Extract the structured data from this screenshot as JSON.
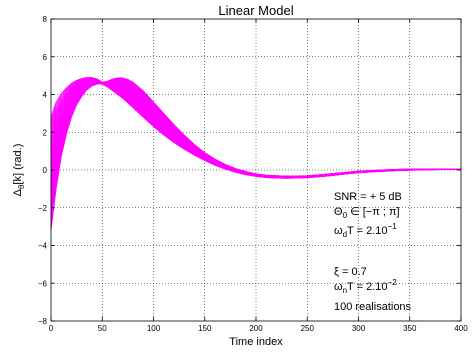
{
  "chart_data": {
    "type": "line",
    "title": "Linear Model",
    "xlabel": "Time index",
    "ylabel": {
      "base": "Δ",
      "sub": "θ",
      "rest": "[k] (rad.)"
    },
    "xlim": [
      0,
      400
    ],
    "ylim": [
      -8,
      8
    ],
    "xticks": [
      0,
      50,
      100,
      150,
      200,
      250,
      300,
      350,
      400
    ],
    "yticks": [
      -8,
      -6,
      -4,
      -2,
      0,
      2,
      4,
      6,
      8
    ],
    "grid": true,
    "line_color": "#ff00ff",
    "num_realisations_drawn": 40,
    "envelope": {
      "upper": [
        [
          0,
          2.8
        ],
        [
          5,
          3.6
        ],
        [
          10,
          4.05
        ],
        [
          15,
          4.35
        ],
        [
          20,
          4.6
        ],
        [
          25,
          4.75
        ],
        [
          30,
          4.85
        ],
        [
          35,
          4.9
        ],
        [
          40,
          4.9
        ],
        [
          45,
          4.82
        ],
        [
          50,
          4.65
        ],
        [
          55,
          4.7
        ],
        [
          60,
          4.82
        ],
        [
          65,
          4.88
        ],
        [
          70,
          4.88
        ],
        [
          75,
          4.8
        ],
        [
          80,
          4.65
        ],
        [
          90,
          4.2
        ],
        [
          100,
          3.6
        ],
        [
          110,
          3.0
        ],
        [
          120,
          2.4
        ],
        [
          130,
          1.85
        ],
        [
          140,
          1.35
        ],
        [
          150,
          0.92
        ],
        [
          160,
          0.58
        ],
        [
          170,
          0.3
        ],
        [
          180,
          0.08
        ],
        [
          190,
          -0.08
        ],
        [
          200,
          -0.2
        ],
        [
          210,
          -0.27
        ],
        [
          220,
          -0.3
        ],
        [
          230,
          -0.32
        ],
        [
          240,
          -0.31
        ],
        [
          250,
          -0.3
        ],
        [
          260,
          -0.26
        ],
        [
          270,
          -0.21
        ],
        [
          280,
          -0.16
        ],
        [
          290,
          -0.11
        ],
        [
          300,
          -0.06
        ],
        [
          320,
          0.0
        ],
        [
          340,
          0.04
        ],
        [
          360,
          0.06
        ],
        [
          380,
          0.06
        ],
        [
          400,
          0.05
        ]
      ],
      "lower": [
        [
          0,
          -3.2
        ],
        [
          5,
          -1.0
        ],
        [
          10,
          0.7
        ],
        [
          15,
          1.9
        ],
        [
          20,
          2.8
        ],
        [
          25,
          3.45
        ],
        [
          30,
          3.9
        ],
        [
          35,
          4.25
        ],
        [
          40,
          4.45
        ],
        [
          45,
          4.55
        ],
        [
          50,
          4.55
        ],
        [
          55,
          4.4
        ],
        [
          60,
          4.2
        ],
        [
          65,
          4.0
        ],
        [
          70,
          3.8
        ],
        [
          75,
          3.55
        ],
        [
          80,
          3.3
        ],
        [
          90,
          2.8
        ],
        [
          100,
          2.3
        ],
        [
          110,
          1.85
        ],
        [
          120,
          1.45
        ],
        [
          130,
          1.1
        ],
        [
          140,
          0.78
        ],
        [
          150,
          0.5
        ],
        [
          160,
          0.25
        ],
        [
          170,
          0.05
        ],
        [
          180,
          -0.12
        ],
        [
          190,
          -0.25
        ],
        [
          200,
          -0.34
        ],
        [
          210,
          -0.4
        ],
        [
          220,
          -0.43
        ],
        [
          230,
          -0.44
        ],
        [
          240,
          -0.43
        ],
        [
          250,
          -0.41
        ],
        [
          260,
          -0.37
        ],
        [
          270,
          -0.32
        ],
        [
          280,
          -0.26
        ],
        [
          290,
          -0.2
        ],
        [
          300,
          -0.15
        ],
        [
          320,
          -0.08
        ],
        [
          340,
          -0.03
        ],
        [
          360,
          0.0
        ],
        [
          380,
          0.02
        ],
        [
          400,
          0.02
        ]
      ]
    },
    "annotations": {
      "snr": "SNR = + 5 dB",
      "theta": {
        "base": "Θ",
        "sub": "0",
        "rest": " ∈ [−π ; π]"
      },
      "omega_d": {
        "base": "ω",
        "sub": "d",
        "mid": "T = 2.10",
        "sup": "−1"
      },
      "xi": "ξ = 0.7",
      "omega_n": {
        "base": "ω",
        "sub": "n",
        "mid": "T = 2.10",
        "sup": "−2"
      },
      "realisations": "100 realisations"
    }
  }
}
